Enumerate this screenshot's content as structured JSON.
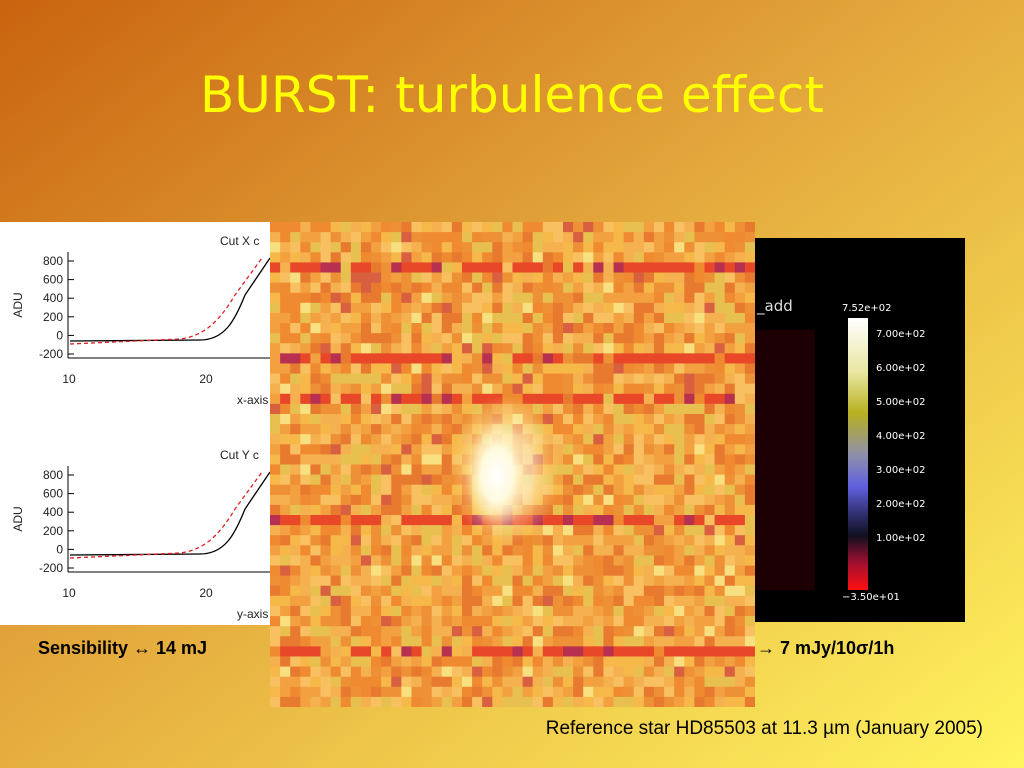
{
  "title": "BURST: turbulence effect",
  "left_panel": {
    "plots": [
      {
        "title": "Cut X c",
        "y_label": "ADU",
        "y_ticks": [
          "800",
          "600",
          "400",
          "200",
          "0",
          "-200"
        ],
        "x_ticks": [
          "10",
          "20"
        ],
        "x_label": "x-axis"
      },
      {
        "title": "Cut Y c",
        "y_label": "ADU",
        "y_ticks": [
          "800",
          "600",
          "400",
          "200",
          "0",
          "-200"
        ],
        "x_ticks": [
          "10",
          "20"
        ],
        "x_label": "y-axis"
      }
    ]
  },
  "right_panel": {
    "label": "_add",
    "colorbar": {
      "max": "7.52e+02",
      "ticks": [
        "7.00e+02",
        "6.00e+02",
        "5.00e+02",
        "4.00e+02",
        "3.00e+02",
        "2.00e+02",
        "1.00e+02"
      ],
      "min": "−3.50e+01"
    }
  },
  "sensibility": {
    "left": "Sensibility ↔ 14 mJ",
    "right": "→ 7 mJy/10σ/1h"
  },
  "caption": "Reference star HD85503 at 11.3 µm (January 2005)"
}
